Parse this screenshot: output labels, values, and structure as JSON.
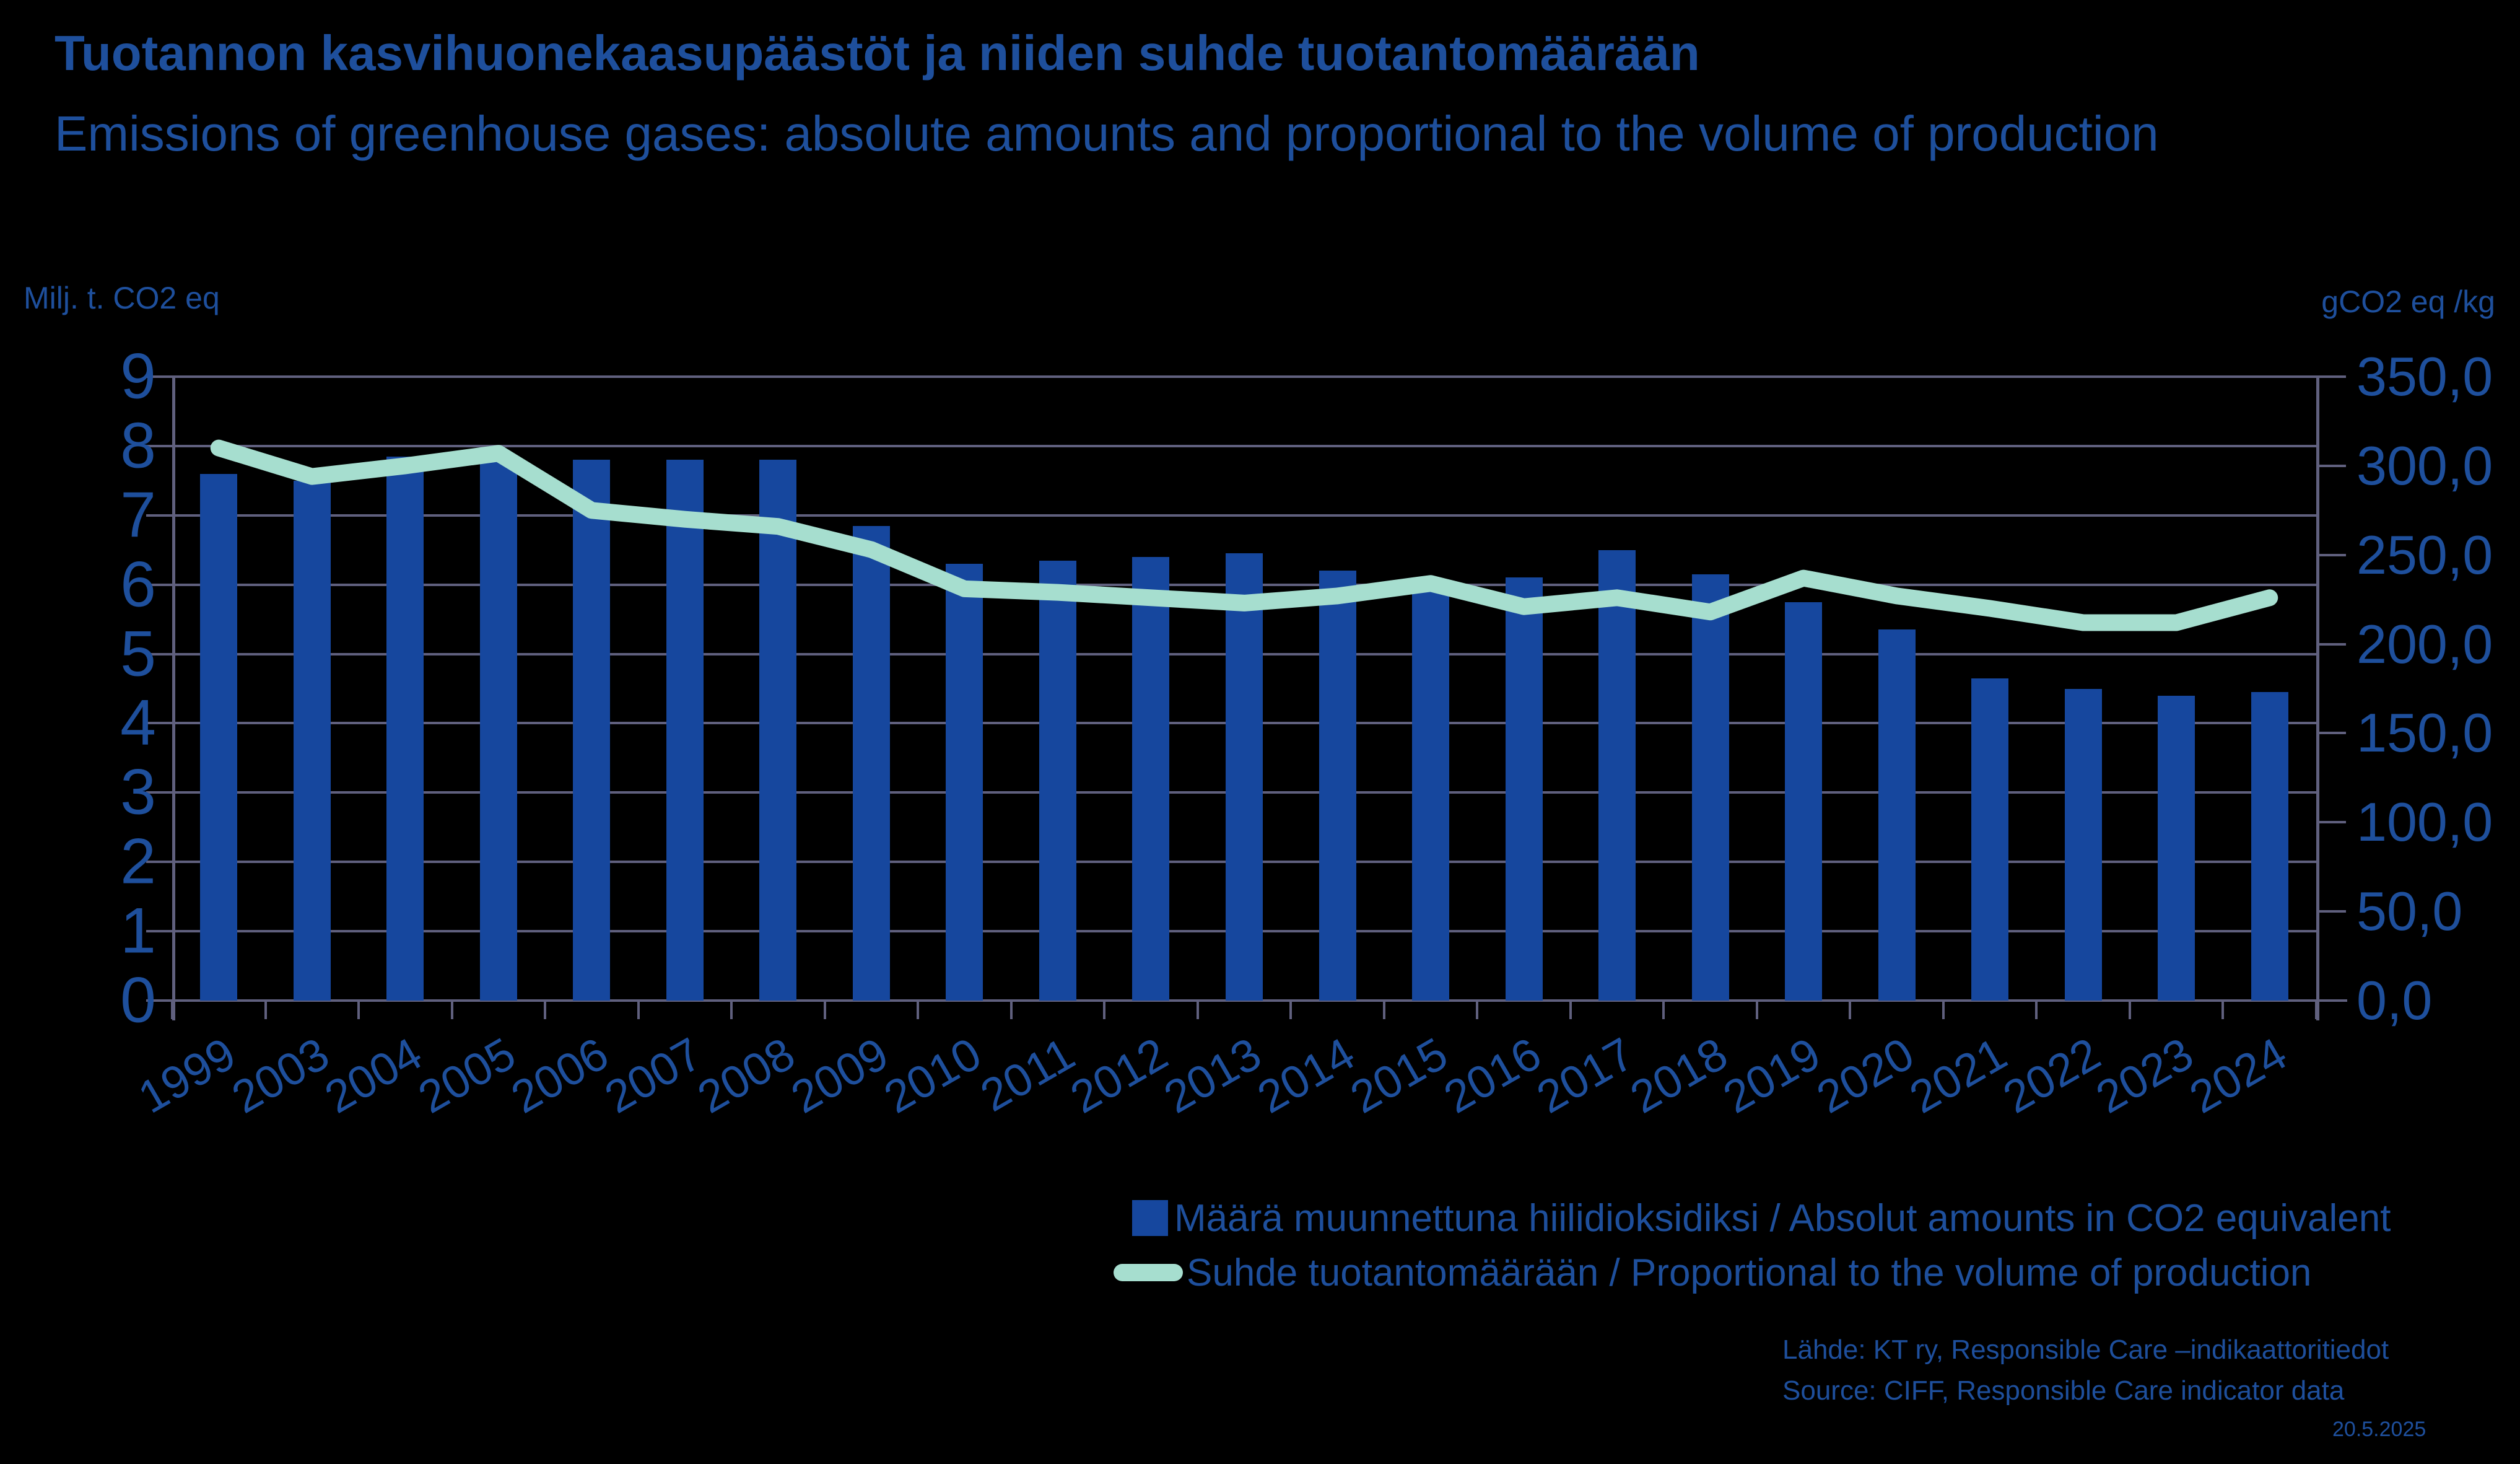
{
  "title": "Tuotannon kasvihuonekaasupäästöt ja niiden suhde tuotantomäärään",
  "subtitle": "Emissions of greenhouse gases: absolute amounts and proportional to the volume of production",
  "left_axis": {
    "title": "Milj. t. CO2 eq",
    "ticks_top_to_bottom": [
      "9",
      "8",
      "7",
      "6",
      "5",
      "4",
      "3",
      "2",
      "1",
      "0"
    ]
  },
  "right_axis": {
    "title": "gCO2 eq /kg",
    "ticks_top_to_bottom": [
      "350,0",
      "300,0",
      "250,0",
      "200,0",
      "150,0",
      "100,0",
      "50,0",
      "0,0"
    ]
  },
  "legend": {
    "items": [
      {
        "label": "Määrä muunnettuna hiilidioksidiksi / Absolut amounts in CO2 equivalent",
        "marker": "bar-square"
      },
      {
        "label": "Suhde tuotantomäärään / Proportional to the volume of production",
        "marker": "line-segment"
      }
    ]
  },
  "source": {
    "line1": "Lähde: KT ry, Responsible Care –indikaattoritiedot",
    "line2": "Source: CIFF, Responsible Care indicator data"
  },
  "date": "20.5.2025",
  "colors": {
    "background": "#000000",
    "text_blue": "#1E4F9C",
    "bar_blue": "#16479E",
    "line_teal": "#A6DECF",
    "gridline": "#60607E"
  },
  "chart_data": {
    "type": "bar",
    "subtype": "bar-with-line-overlay",
    "categories": [
      "1999",
      "2003",
      "2004",
      "2005",
      "2006",
      "2007",
      "2008",
      "2009",
      "2010",
      "2011",
      "2012",
      "2013",
      "2014",
      "2015",
      "2016",
      "2017",
      "2018",
      "2019",
      "2020",
      "2021",
      "2022",
      "2023",
      "2024"
    ],
    "series": [
      {
        "name": "Määrä muunnettuna hiilidioksidiksi / Absolut amounts in CO2 equivalent",
        "type": "bar",
        "axis": "left",
        "unit": "Milj. t. CO2 eq",
        "values": [
          7.6,
          7.5,
          7.85,
          7.8,
          7.8,
          7.8,
          7.8,
          6.85,
          6.3,
          6.35,
          6.4,
          6.45,
          6.2,
          6.05,
          6.1,
          6.5,
          6.15,
          5.75,
          5.35,
          4.65,
          4.5,
          4.4,
          4.45
        ]
      },
      {
        "name": "Suhde tuotantomäärään / Proportional to the volume of production",
        "type": "line",
        "axis": "right",
        "unit": "gCO2 eq /kg",
        "values": [
          310,
          294,
          300,
          307,
          275,
          270,
          266,
          253,
          231,
          229,
          226,
          223,
          227,
          234,
          221,
          226,
          218,
          237,
          227,
          220,
          212,
          212,
          226
        ]
      }
    ],
    "left_ylim": [
      0,
      9
    ],
    "right_ylim": [
      0,
      350
    ],
    "grid": "horizontal",
    "legend_position": "bottom-right",
    "x_label_rotation": -30
  }
}
